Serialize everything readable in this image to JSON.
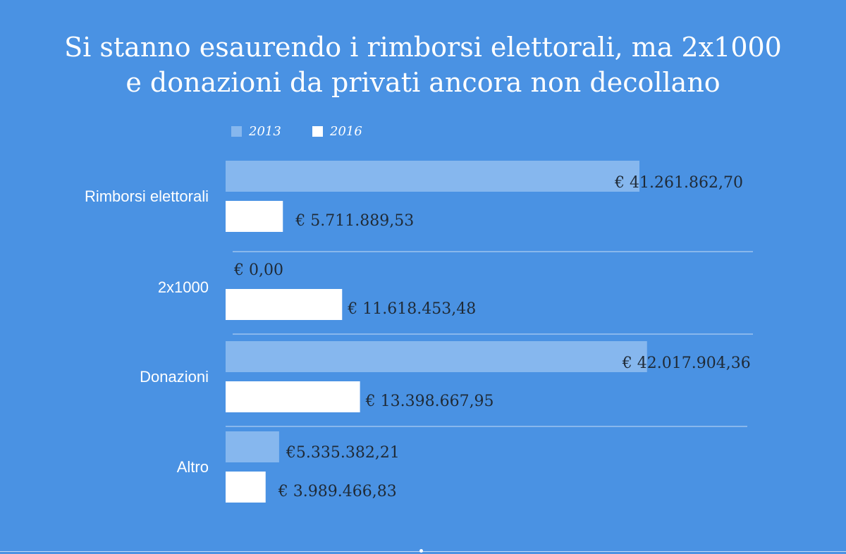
{
  "colors": {
    "background": "#4a92e3",
    "series_2013": "#86b7ee",
    "series_2016": "#ffffff",
    "value_text": "#1f2a36",
    "label_text": "#ffffff",
    "separator": "#c7dcf5"
  },
  "chart_data": {
    "type": "bar",
    "orientation": "horizontal",
    "title_lines": [
      "Si stanno esaurendo i rimborsi elettorali, ma 2x1000",
      "e donazioni da privati ancora non decollano"
    ],
    "categories": [
      "Rimborsi elettorali",
      "2x1000",
      "Donazioni",
      "Altro"
    ],
    "series": [
      {
        "name": "2013",
        "values": [
          41261862.7,
          0,
          42017904.36,
          5335382.21
        ],
        "labels": [
          "€ 41.261.862,70",
          "€ 0,00",
          "€ 42.017.904,36",
          "€5.335.382,21"
        ]
      },
      {
        "name": "2016",
        "values": [
          5711889.53,
          11618453.48,
          13398667.95,
          3989466.83
        ],
        "labels": [
          "€ 5.711.889,53",
          "€ 11.618.453,48",
          "€ 13.398.667,95",
          "€ 3.989.466,83"
        ]
      }
    ],
    "xlim": [
      0,
      50000000
    ],
    "grid": false,
    "legend_position": "top"
  }
}
